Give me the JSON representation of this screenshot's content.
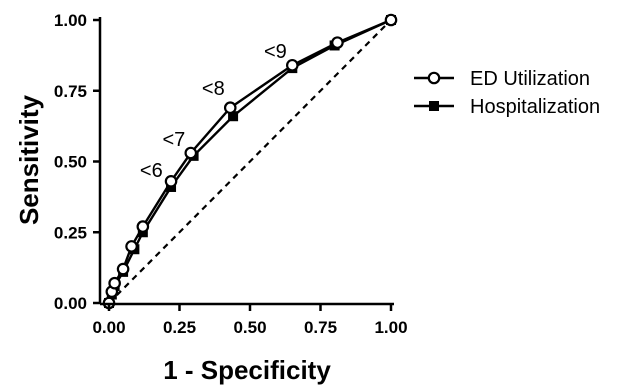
{
  "chart_data": {
    "type": "line",
    "title": "",
    "xlabel": "1 - Specificity",
    "ylabel": "Sensitivity",
    "xlim": [
      0,
      1
    ],
    "ylim": [
      0,
      1
    ],
    "x_ticks": [
      "0.00",
      "0.25",
      "0.50",
      "0.75",
      "1.00"
    ],
    "y_ticks": [
      "0.00",
      "0.25",
      "0.50",
      "0.75",
      "1.00"
    ],
    "grid": false,
    "legend_position": "right",
    "reference_line": {
      "style": "dashed",
      "from": [
        0,
        0
      ],
      "to": [
        1,
        1
      ]
    },
    "series": [
      {
        "name": "ED Utilization",
        "marker": "open-circle",
        "color": "#000000",
        "x": [
          0.0,
          0.01,
          0.02,
          0.05,
          0.08,
          0.12,
          0.22,
          0.29,
          0.43,
          0.65,
          0.81,
          1.0
        ],
        "y": [
          0.0,
          0.04,
          0.07,
          0.12,
          0.2,
          0.27,
          0.43,
          0.53,
          0.69,
          0.84,
          0.92,
          1.0
        ]
      },
      {
        "name": "Hospitalization",
        "marker": "filled-square",
        "color": "#000000",
        "x": [
          0.0,
          0.01,
          0.02,
          0.05,
          0.09,
          0.12,
          0.22,
          0.3,
          0.44,
          0.65,
          0.8,
          1.0
        ],
        "y": [
          0.0,
          0.03,
          0.06,
          0.11,
          0.19,
          0.25,
          0.41,
          0.52,
          0.66,
          0.83,
          0.91,
          1.0
        ]
      }
    ],
    "annotations": [
      {
        "text": "<6",
        "x": 0.15,
        "y": 0.47
      },
      {
        "text": "<7",
        "x": 0.23,
        "y": 0.58
      },
      {
        "text": "<8",
        "x": 0.37,
        "y": 0.76
      },
      {
        "text": "<9",
        "x": 0.59,
        "y": 0.89
      }
    ]
  }
}
